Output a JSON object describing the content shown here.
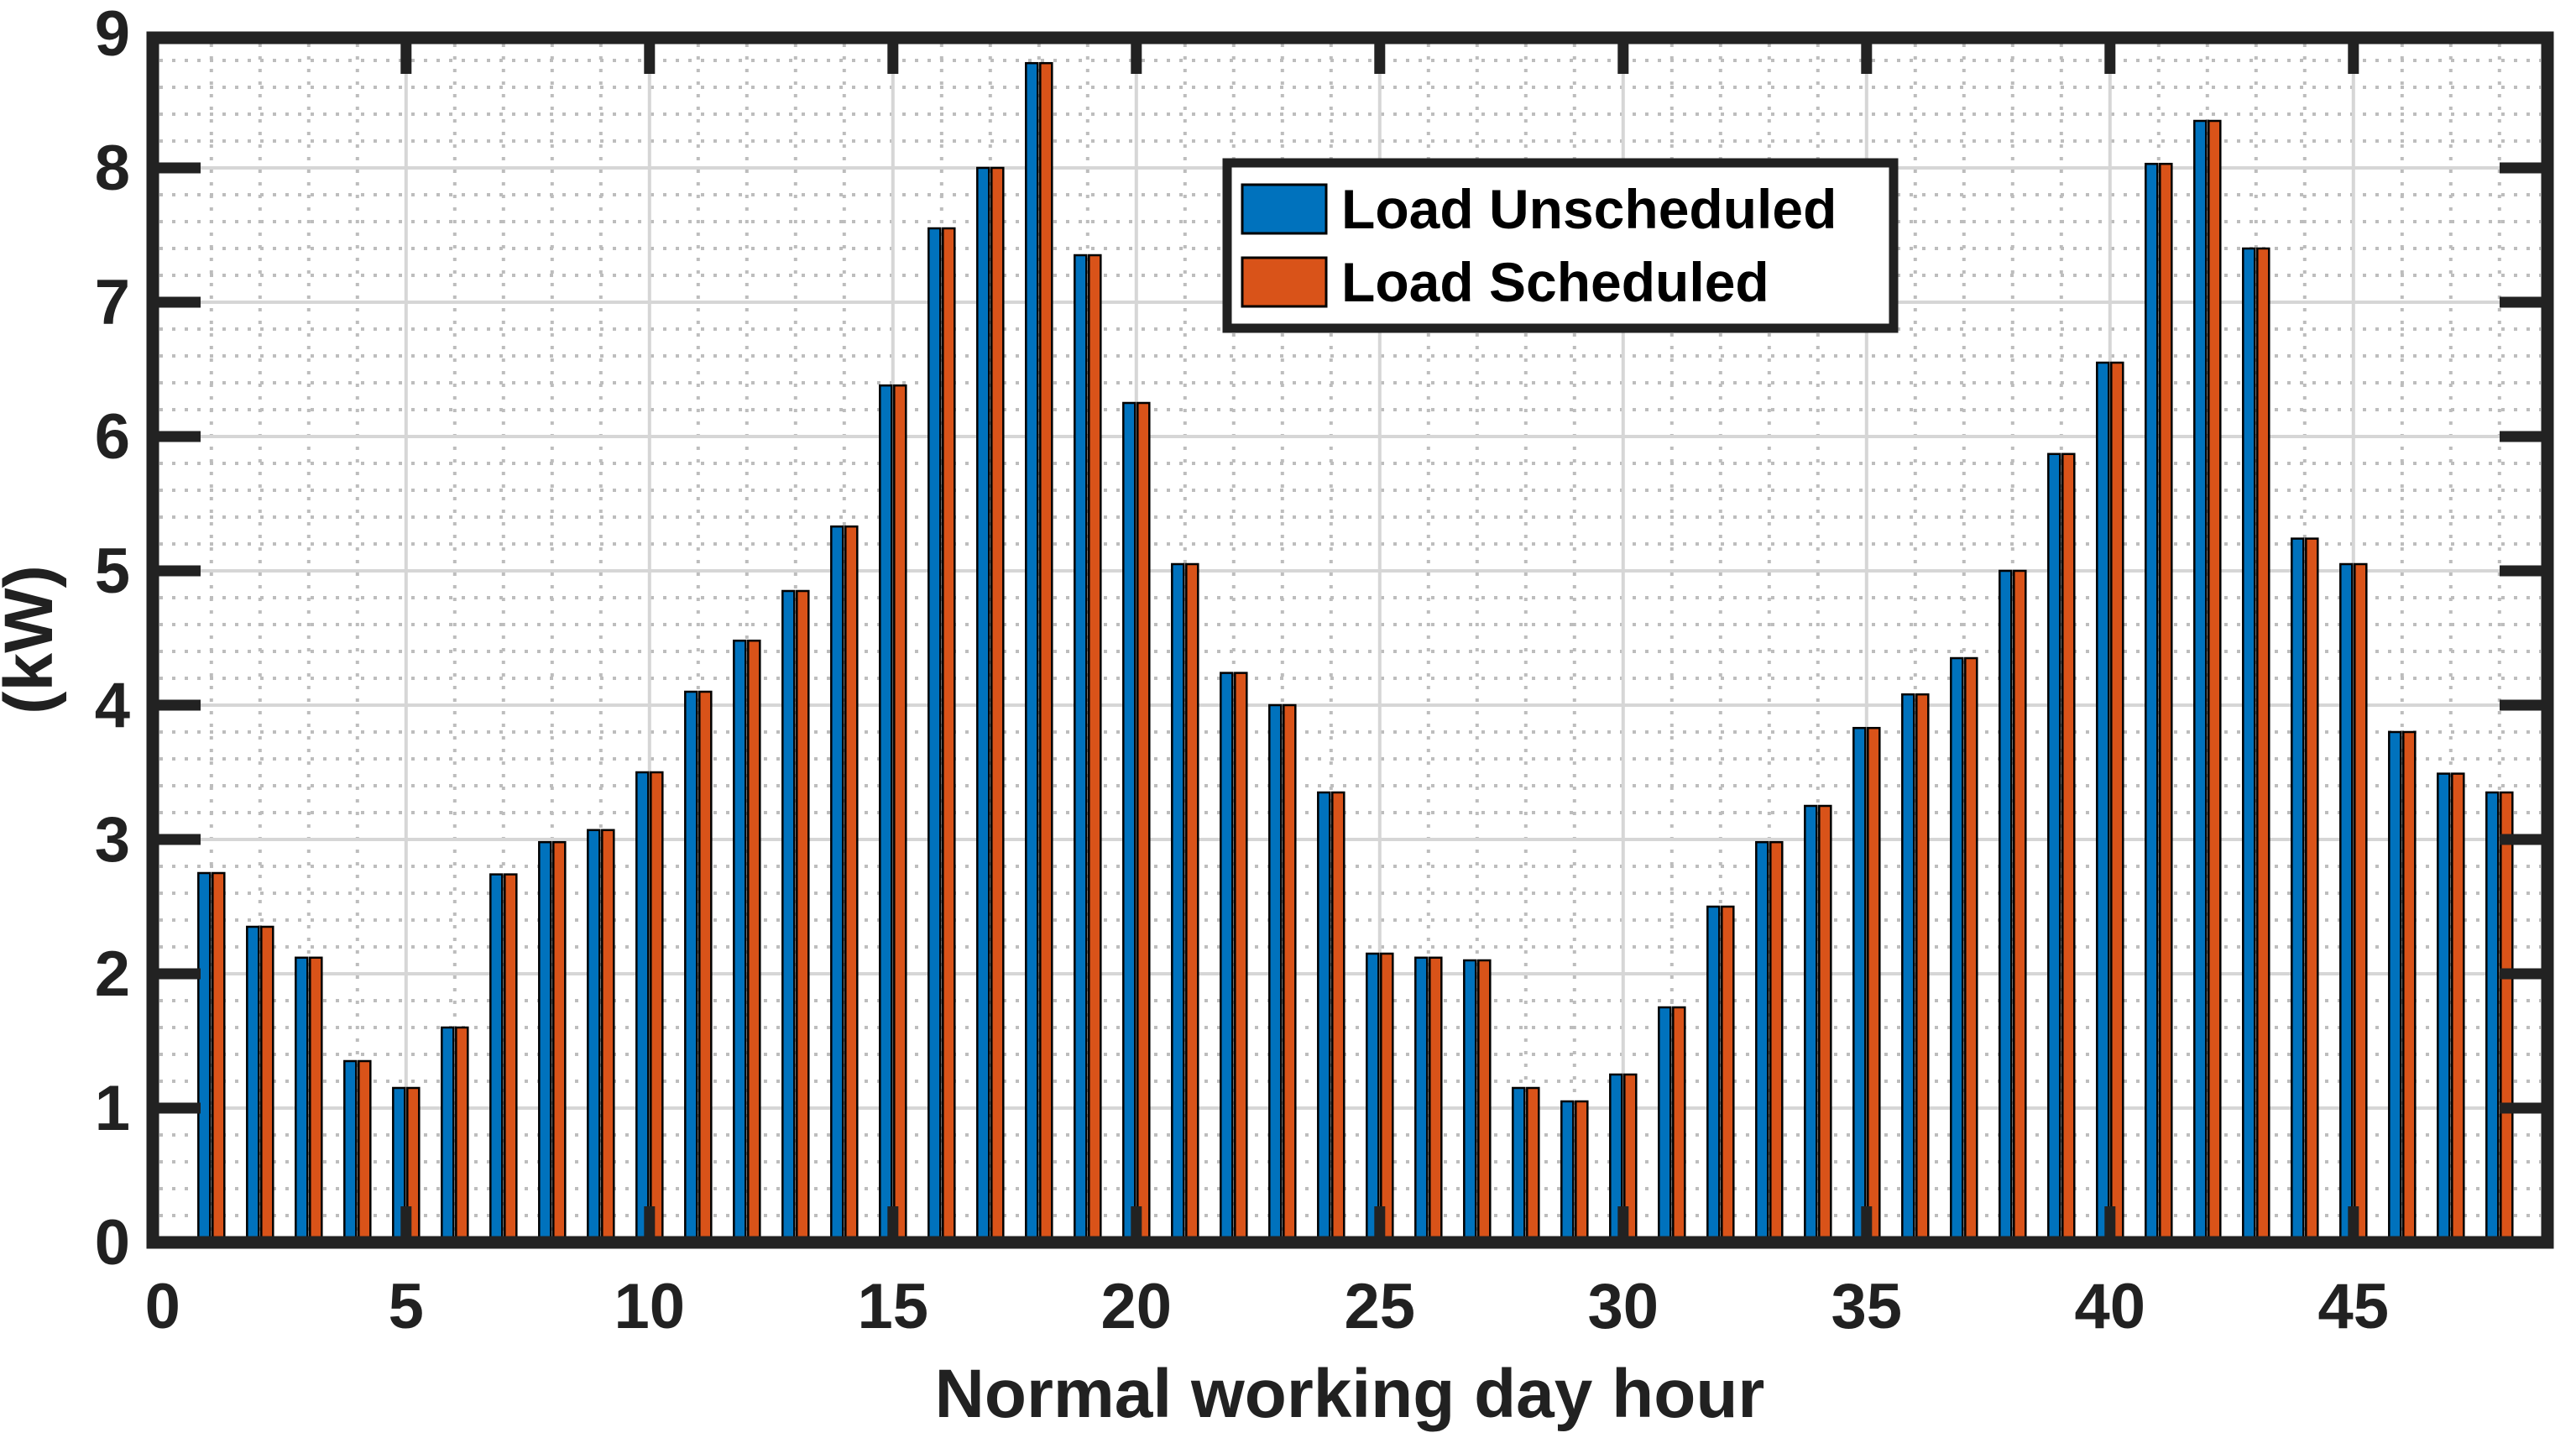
{
  "chart_data": {
    "type": "bar",
    "title": "",
    "xlabel": "Normal working day hour",
    "ylabel": "(kW)",
    "xlim": [
      0,
      49
    ],
    "ylim": [
      0,
      9
    ],
    "x_ticks": [
      0,
      5,
      10,
      15,
      20,
      25,
      30,
      35,
      40,
      45
    ],
    "y_ticks": [
      0,
      1,
      2,
      3,
      4,
      5,
      6,
      7,
      8,
      9
    ],
    "y_minor_grid_step": 0.2,
    "x_minor_grid_step": 1,
    "grid": "on",
    "legend_position": "upper-center",
    "hours": [
      1,
      2,
      3,
      4,
      5,
      6,
      7,
      8,
      9,
      10,
      11,
      12,
      13,
      14,
      15,
      16,
      17,
      18,
      19,
      20,
      21,
      22,
      23,
      24,
      25,
      26,
      27,
      28,
      29,
      30,
      31,
      32,
      33,
      34,
      35,
      36,
      37,
      38,
      39,
      40,
      41,
      42,
      43,
      44,
      45,
      46,
      47,
      48
    ],
    "series": [
      {
        "name": "Load Unscheduled",
        "color": "#0072BD",
        "values": [
          2.75,
          2.35,
          2.12,
          1.35,
          1.15,
          1.6,
          2.74,
          2.98,
          3.07,
          3.5,
          4.1,
          4.48,
          4.85,
          5.33,
          6.38,
          7.55,
          8.0,
          8.78,
          7.35,
          6.25,
          5.05,
          4.24,
          4.0,
          3.35,
          2.15,
          2.12,
          2.1,
          1.15,
          1.05,
          1.25,
          1.75,
          2.5,
          2.98,
          3.25,
          3.83,
          4.08,
          4.35,
          5.0,
          5.87,
          6.55,
          8.03,
          8.35,
          7.4,
          5.24,
          5.05,
          3.8,
          3.49,
          3.35
        ]
      },
      {
        "name": "Load Scheduled",
        "color": "#D95319",
        "values": [
          2.75,
          2.35,
          2.12,
          1.35,
          1.15,
          1.6,
          2.74,
          2.98,
          3.07,
          3.5,
          4.1,
          4.48,
          4.85,
          5.33,
          6.38,
          7.55,
          8.0,
          8.78,
          7.35,
          6.25,
          5.05,
          4.24,
          4.0,
          3.35,
          2.15,
          2.12,
          2.1,
          1.15,
          1.05,
          1.25,
          1.75,
          2.5,
          2.98,
          3.25,
          3.83,
          4.08,
          4.35,
          5.0,
          5.87,
          6.55,
          8.03,
          8.35,
          7.4,
          5.24,
          5.05,
          3.8,
          3.49,
          3.35
        ]
      }
    ],
    "style": {
      "bar_edge_color": "#000000",
      "axis_color": "#222222",
      "label_color": "#212121",
      "major_grid_color": "#d6d6d6",
      "minor_grid_color": "#bdbdbd",
      "background": "#ffffff",
      "legend_border_color": "#212121",
      "legend_background": "#ffffff"
    }
  }
}
